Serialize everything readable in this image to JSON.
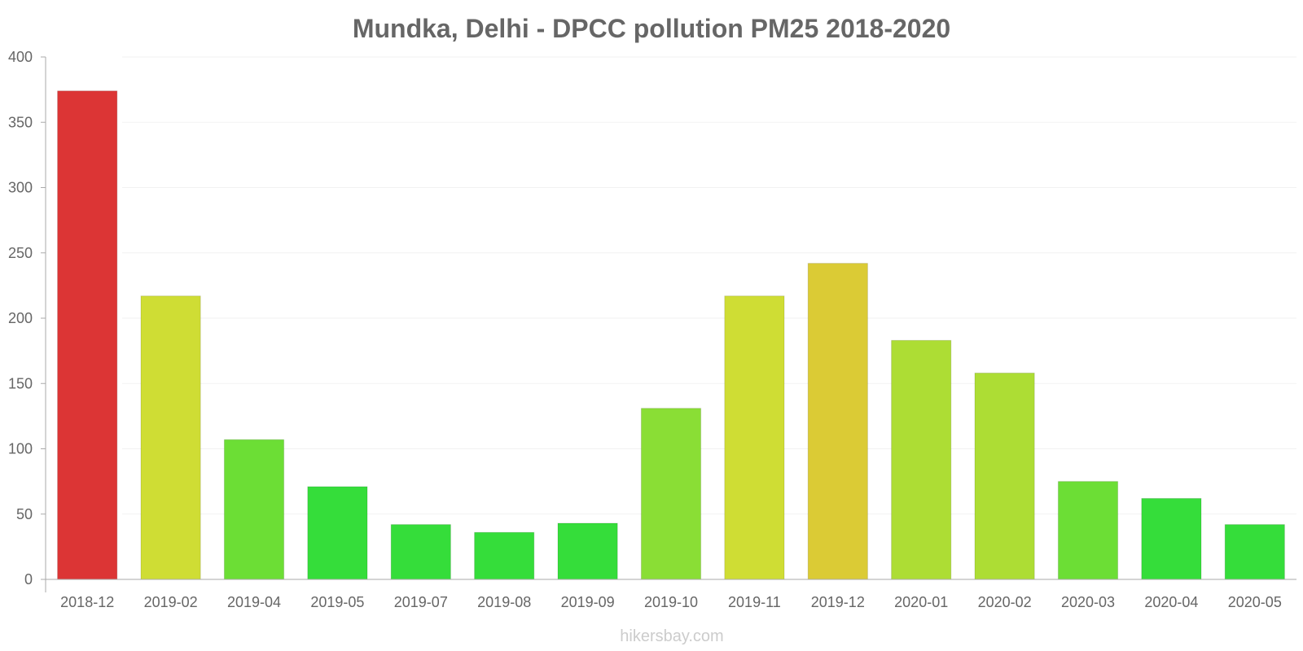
{
  "chart_data": {
    "type": "bar",
    "title": "Mundka, Delhi - DPCC pollution PM25 2018-2020",
    "xlabel": "",
    "ylabel": "",
    "ylim": [
      0,
      400
    ],
    "y_ticks": [
      0,
      50,
      100,
      150,
      200,
      250,
      300,
      350,
      400
    ],
    "categories": [
      "2018-12",
      "2019-02",
      "2019-04",
      "2019-05",
      "2019-07",
      "2019-08",
      "2019-09",
      "2019-10",
      "2019-11",
      "2019-12",
      "2020-01",
      "2020-02",
      "2020-03",
      "2020-04",
      "2020-05"
    ],
    "values": [
      374,
      217,
      107,
      71,
      42,
      36,
      43,
      131,
      217,
      242,
      183,
      158,
      75,
      62,
      42
    ],
    "bar_colors": [
      "#dc3535",
      "#cfdd34",
      "#6cde35",
      "#35dd3a",
      "#35dd3a",
      "#35dd3a",
      "#35dd3a",
      "#8ade35",
      "#cfdd34",
      "#dbcb35",
      "#addd34",
      "#addd34",
      "#6cde35",
      "#35dd3a",
      "#35dd3a"
    ],
    "grid": true,
    "legend": "none"
  },
  "watermark": "hikersbay.com",
  "colors": {
    "text": "#666666",
    "axis": "#aaaaaa",
    "grid": "#f2f2f2",
    "watermark": "#cccccc"
  }
}
